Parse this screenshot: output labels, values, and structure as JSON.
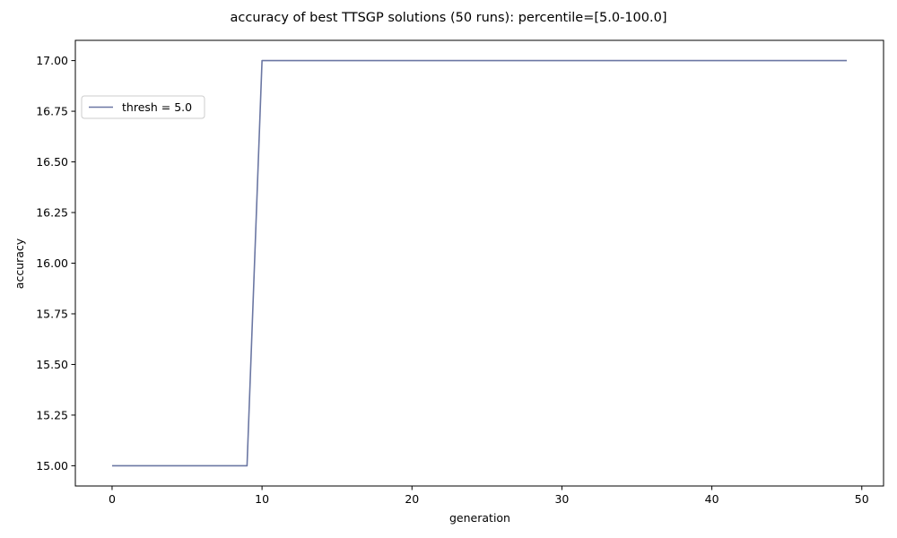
{
  "chart_data": {
    "type": "line",
    "title": "accuracy of best TTSGP solutions (50 runs): percentile=[5.0-100.0]",
    "xlabel": "generation",
    "ylabel": "accuracy",
    "xlim": [
      -2.45,
      51.45
    ],
    "ylim": [
      14.9,
      17.1
    ],
    "xticks": [
      0,
      10,
      20,
      30,
      40,
      50
    ],
    "xtick_labels": [
      "0",
      "10",
      "20",
      "30",
      "40",
      "50"
    ],
    "yticks": [
      15.0,
      15.25,
      15.5,
      15.75,
      16.0,
      16.25,
      16.5,
      16.75,
      17.0
    ],
    "ytick_labels": [
      "15.00",
      "15.25",
      "15.50",
      "15.75",
      "16.00",
      "16.25",
      "16.50",
      "16.75",
      "17.00"
    ],
    "grid": false,
    "legend_position": "upper-left",
    "series": [
      {
        "name": "thresh = 5.0",
        "color": "#6b77a3",
        "x": [
          0,
          1,
          2,
          3,
          4,
          5,
          6,
          7,
          8,
          9,
          10,
          11,
          12,
          13,
          14,
          15,
          16,
          17,
          18,
          19,
          20,
          21,
          22,
          23,
          24,
          25,
          26,
          27,
          28,
          29,
          30,
          31,
          32,
          33,
          34,
          35,
          36,
          37,
          38,
          39,
          40,
          41,
          42,
          43,
          44,
          45,
          46,
          47,
          48,
          49
        ],
        "y": [
          15,
          15,
          15,
          15,
          15,
          15,
          15,
          15,
          15,
          15,
          17,
          17,
          17,
          17,
          17,
          17,
          17,
          17,
          17,
          17,
          17,
          17,
          17,
          17,
          17,
          17,
          17,
          17,
          17,
          17,
          17,
          17,
          17,
          17,
          17,
          17,
          17,
          17,
          17,
          17,
          17,
          17,
          17,
          17,
          17,
          17,
          17,
          17,
          17,
          17
        ]
      }
    ]
  }
}
